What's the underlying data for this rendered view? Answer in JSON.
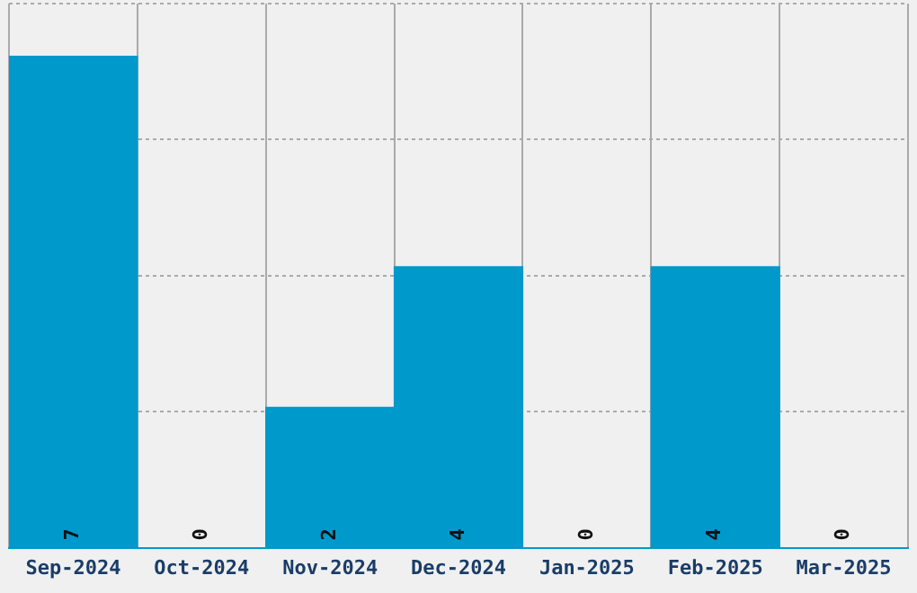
{
  "chart_data": {
    "type": "bar",
    "categories": [
      "Sep-2024",
      "Oct-2024",
      "Nov-2024",
      "Dec-2024",
      "Jan-2025",
      "Feb-2025",
      "Mar-2025"
    ],
    "values": [
      7,
      0,
      2,
      4,
      0,
      4,
      0
    ],
    "color": "#0099cc",
    "ylim": [
      0,
      7.75
    ],
    "yticks": [
      {
        "value": 0,
        "label": null
      },
      {
        "value": 1.9375,
        "label": null
      },
      {
        "value": 3.875,
        "label": null
      },
      {
        "value": 5.8125,
        "label": null
      },
      {
        "value": 7.75,
        "label": null
      }
    ],
    "tick_labels": "x",
    "grid": true,
    "data_labels": true,
    "legend": false
  }
}
